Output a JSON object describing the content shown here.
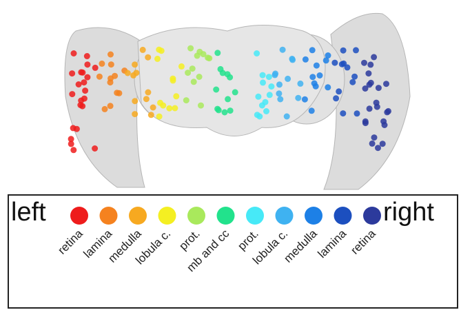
{
  "legend": {
    "left": "left",
    "right": "right",
    "items": [
      {
        "label": "retina",
        "color": "#ee1c1c"
      },
      {
        "label": "lamina",
        "color": "#f5821f"
      },
      {
        "label": "medulla",
        "color": "#f7a920"
      },
      {
        "label": "lobula c.",
        "color": "#f4ef22"
      },
      {
        "label": "prot.",
        "color": "#a9e95c"
      },
      {
        "label": "mb and cc",
        "color": "#22e28c"
      },
      {
        "label": "prot.",
        "color": "#47e9f7"
      },
      {
        "label": "lobula c.",
        "color": "#3fb2f1"
      },
      {
        "label": "medulla",
        "color": "#1d80e6"
      },
      {
        "label": "lamina",
        "color": "#1c4fbf"
      },
      {
        "label": "retina",
        "color": "#2c3a9c"
      }
    ]
  }
}
